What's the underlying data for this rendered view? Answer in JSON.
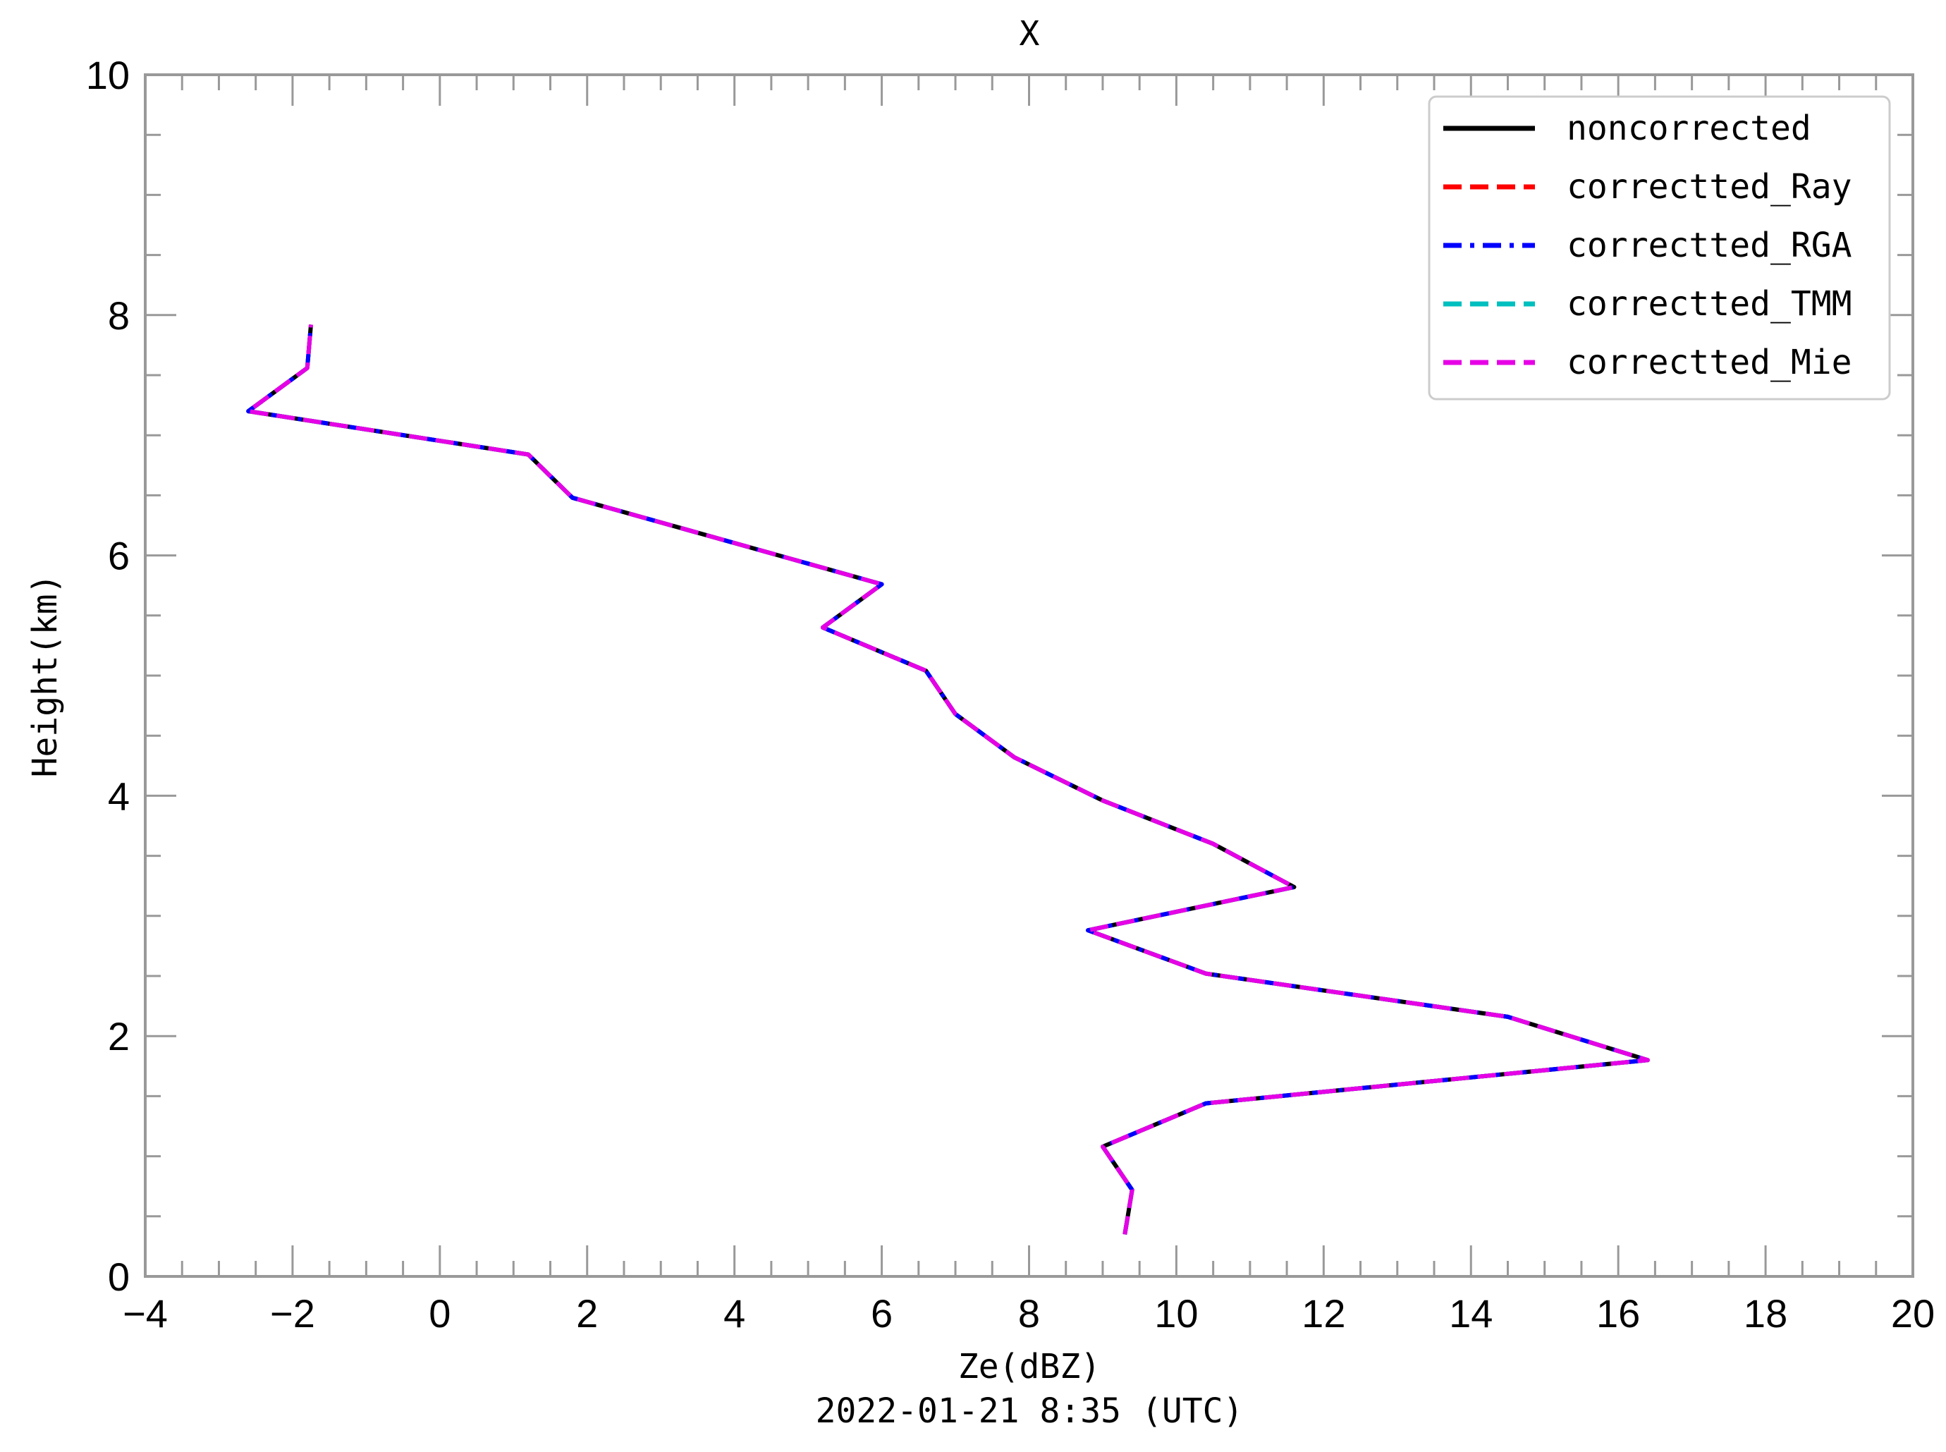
{
  "chart_data": {
    "type": "line",
    "title": "X",
    "xlabel": "Ze(dBZ)",
    "ylabel": "Height(km)",
    "subtitle": "2022-01-21 8:35 (UTC)",
    "xlim": [
      -4,
      20
    ],
    "ylim": [
      0,
      10
    ],
    "xticks": [
      -4,
      -2,
      0,
      2,
      4,
      6,
      8,
      10,
      12,
      14,
      16,
      18,
      20
    ],
    "xtick_labels": [
      "−4",
      "−2",
      "0",
      "2",
      "4",
      "6",
      "8",
      "10",
      "12",
      "14",
      "16",
      "18",
      "20"
    ],
    "yticks": [
      0,
      2,
      4,
      6,
      8,
      10
    ],
    "ytick_labels": [
      "0",
      "2",
      "4",
      "6",
      "8",
      "10"
    ],
    "legend_position": "top-right",
    "grid": false,
    "profile": {
      "x": [
        9.3,
        9.4,
        9.0,
        10.4,
        16.4,
        14.5,
        10.4,
        8.8,
        11.6,
        10.5,
        9.0,
        7.8,
        7.0,
        6.6,
        5.2,
        6.0,
        1.8,
        1.2,
        -2.6,
        -1.8,
        -1.75
      ],
      "y": [
        0.35,
        0.72,
        1.08,
        1.44,
        1.8,
        2.16,
        2.52,
        2.88,
        3.24,
        3.6,
        3.96,
        4.32,
        4.68,
        5.04,
        5.4,
        5.76,
        6.48,
        6.84,
        7.2,
        7.56,
        7.92
      ]
    },
    "series": [
      {
        "name": "noncorrected",
        "color": "#000000",
        "style": "solid"
      },
      {
        "name": "correctted_Ray",
        "color": "#ff0000",
        "style": "dashed"
      },
      {
        "name": "correctted_RGA",
        "color": "#0000ff",
        "style": "dashdot"
      },
      {
        "name": "correctted_TMM",
        "color": "#00bfbf",
        "style": "dashed"
      },
      {
        "name": "correctted_Mie",
        "color": "#e600e6",
        "style": "dashed"
      }
    ]
  }
}
